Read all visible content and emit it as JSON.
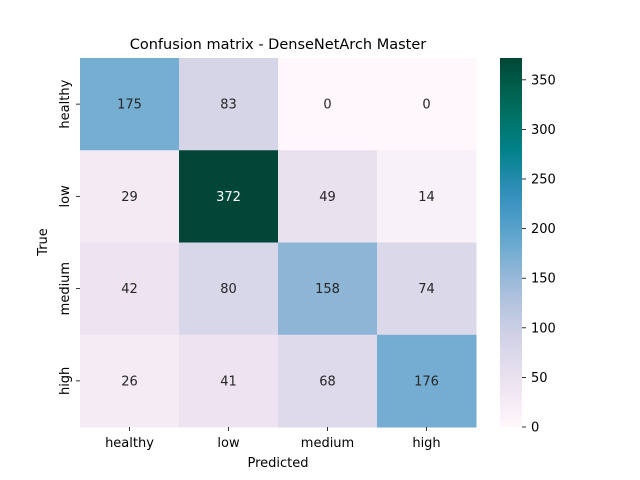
{
  "chart_data": {
    "type": "heatmap",
    "title": "Confusion matrix - DenseNetArch Master",
    "xlabel": "Predicted",
    "ylabel": "True",
    "x_categories": [
      "healthy",
      "low",
      "medium",
      "high"
    ],
    "y_categories": [
      "healthy",
      "low",
      "medium",
      "high"
    ],
    "values": [
      [
        175,
        83,
        0,
        0
      ],
      [
        29,
        372,
        49,
        14
      ],
      [
        42,
        80,
        158,
        74
      ],
      [
        26,
        41,
        68,
        176
      ]
    ],
    "colormap": "PuBuGn",
    "colorbar": {
      "range": [
        0,
        372
      ],
      "ticks": [
        0,
        50,
        100,
        150,
        200,
        250,
        300,
        350
      ]
    },
    "annotations": true,
    "grid": false
  }
}
